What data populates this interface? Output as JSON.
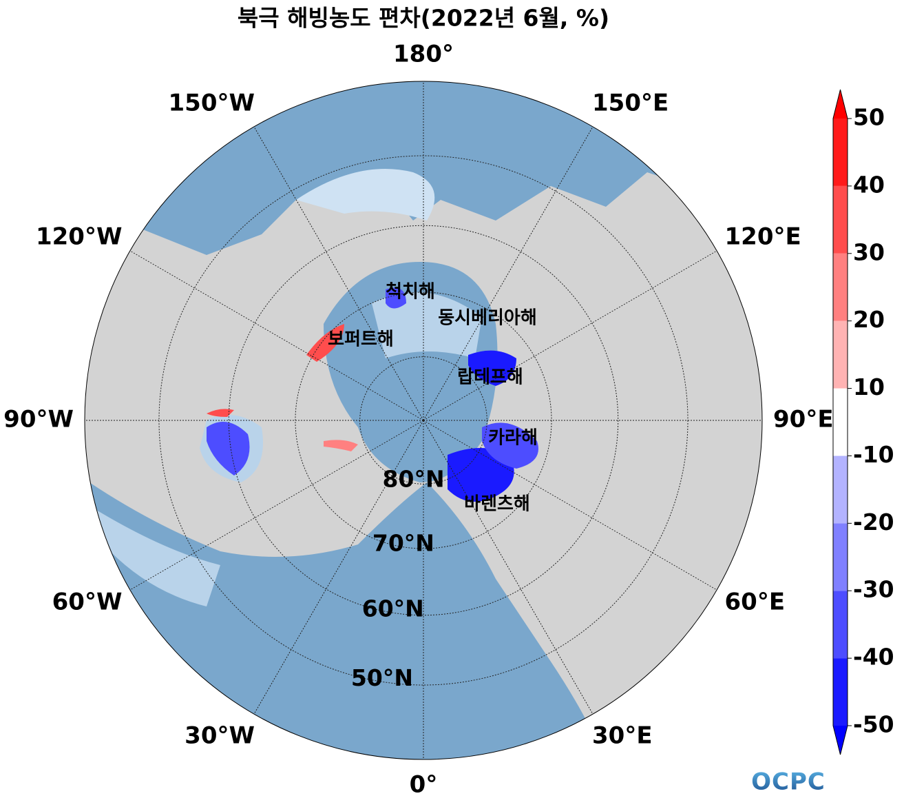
{
  "chart_data": {
    "type": "polar-map",
    "title": "북극 해빙농도 편차(2022년 6월, %)",
    "boundary_lat": 40,
    "longitudes": [
      {
        "value": 0,
        "label": "0°"
      },
      {
        "value": 30,
        "label": "30°E"
      },
      {
        "value": 60,
        "label": "60°E"
      },
      {
        "value": 90,
        "label": "90°E"
      },
      {
        "value": 120,
        "label": "120°E"
      },
      {
        "value": 150,
        "label": "150°E"
      },
      {
        "value": 180,
        "label": "180°"
      },
      {
        "value": -150,
        "label": "150°W"
      },
      {
        "value": -120,
        "label": "120°W"
      },
      {
        "value": -90,
        "label": "90°W"
      },
      {
        "value": -60,
        "label": "60°W"
      },
      {
        "value": -30,
        "label": "30°W"
      }
    ],
    "latitudes": [
      {
        "value": 80,
        "label": "80°N"
      },
      {
        "value": 70,
        "label": "70°N"
      },
      {
        "value": 60,
        "label": "60°N"
      },
      {
        "value": 50,
        "label": "50°N"
      }
    ],
    "sea_labels": [
      "척치해",
      "동시베리아해",
      "보퍼트해",
      "랍테프해",
      "카라해",
      "바렌츠해"
    ],
    "colorbar": {
      "ticks": [
        -50,
        -40,
        -30,
        -20,
        -10,
        10,
        20,
        30,
        40,
        50
      ],
      "colors": [
        "#1a1aff",
        "#4d4dff",
        "#8080ff",
        "#b3b3ff",
        "#ffffff",
        "#ffb3b3",
        "#ff8080",
        "#ff4d4d",
        "#ff1a1a"
      ],
      "under_color": "#0000ff",
      "over_color": "#ff0000"
    },
    "logo": "OCPC"
  }
}
